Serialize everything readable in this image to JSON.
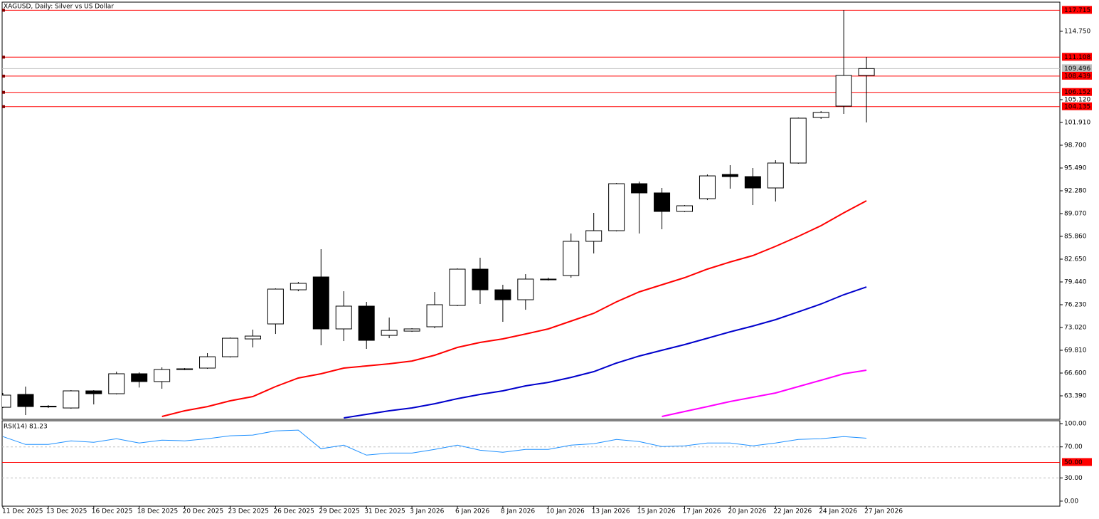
{
  "chart_data": [
    {
      "type": "candlestick",
      "title": "XAGUSD, Daily:  Silver vs US Dollar",
      "categories": [
        "11 Dec 2025",
        null,
        "13 Dec 2025",
        null,
        "16 Dec 2025",
        null,
        "18 Dec 2025",
        null,
        "20 Dec 2025",
        null,
        "23 Dec 2025",
        null,
        "26 Dec 2025",
        null,
        "29 Dec 2025",
        null,
        "31 Dec 2025",
        null,
        "3 Jan 2026",
        null,
        "6 Jan 2026",
        null,
        "8 Jan 2026",
        null,
        "10 Jan 2026",
        null,
        "13 Jan 2026",
        null,
        "15 Jan 2026",
        null,
        "17 Jan 2026",
        null,
        "20 Jan 2026",
        null,
        "22 Jan 2026",
        null,
        "24 Jan 2026",
        null,
        "27 Jan 2026"
      ],
      "open": [
        61.78,
        63.59,
        61.88,
        61.68,
        64.09,
        63.69,
        66.5,
        65.4,
        67.09,
        67.3,
        68.9,
        71.41,
        73.52,
        78.33,
        80.14,
        72.82,
        76.03,
        71.91,
        72.51,
        73.12,
        76.13,
        81.24,
        78.33,
        76.93,
        79.74,
        80.34,
        85.16,
        86.66,
        93.28,
        91.98,
        89.37,
        91.17,
        94.58,
        94.28,
        92.68,
        96.19,
        102.61,
        104.21,
        108.53
      ],
      "high": [
        63.79,
        64.69,
        62.08,
        64.19,
        64.19,
        66.8,
        66.7,
        67.4,
        67.3,
        69.41,
        71.61,
        72.72,
        78.53,
        79.44,
        84.05,
        78.13,
        76.63,
        74.42,
        72.92,
        78.03,
        81.34,
        82.85,
        79.04,
        80.54,
        80.04,
        86.26,
        89.17,
        93.38,
        93.58,
        92.68,
        90.27,
        94.58,
        95.89,
        95.49,
        96.59,
        102.61,
        103.51,
        117.76,
        111.14
      ],
      "low": [
        61.68,
        60.68,
        61.68,
        61.58,
        62.18,
        63.59,
        64.56,
        64.39,
        67.0,
        67.2,
        68.8,
        70.21,
        72.11,
        78.13,
        70.51,
        71.11,
        70.01,
        71.51,
        72.41,
        72.92,
        76.03,
        76.33,
        73.82,
        75.52,
        79.64,
        80.04,
        83.45,
        86.56,
        86.26,
        86.86,
        89.27,
        90.97,
        92.58,
        90.27,
        90.77,
        96.09,
        102.41,
        103.11,
        101.91
      ],
      "close": [
        63.49,
        61.88,
        61.93,
        64.09,
        63.69,
        66.5,
        65.4,
        67.1,
        67.2,
        68.9,
        71.51,
        71.81,
        78.43,
        79.24,
        72.82,
        76.03,
        71.21,
        72.61,
        72.82,
        76.23,
        81.24,
        78.33,
        76.93,
        79.84,
        79.84,
        85.16,
        86.66,
        93.28,
        91.98,
        89.37,
        90.17,
        94.38,
        94.28,
        92.68,
        96.19,
        102.51,
        103.31,
        108.53,
        109.496
      ],
      "series": [
        {
          "color": "#ff0000",
          "values": [
            null,
            null,
            null,
            null,
            null,
            null,
            null,
            60.48,
            61.28,
            61.88,
            62.69,
            63.29,
            64.69,
            65.9,
            66.5,
            67.3,
            67.6,
            67.9,
            68.3,
            69.11,
            70.21,
            70.91,
            71.41,
            72.11,
            72.82,
            73.92,
            75.02,
            76.63,
            78.03,
            79.04,
            80.04,
            81.24,
            82.25,
            83.15,
            84.45,
            85.86,
            87.36,
            89.17,
            90.87
          ]
        },
        {
          "color": "#0000cc",
          "values": [
            null,
            null,
            null,
            null,
            null,
            null,
            null,
            null,
            null,
            null,
            null,
            null,
            null,
            null,
            null,
            60.28,
            60.78,
            61.28,
            61.68,
            62.28,
            62.99,
            63.59,
            64.09,
            64.79,
            65.29,
            65.99,
            66.8,
            68.0,
            69.0,
            69.81,
            70.61,
            71.51,
            72.41,
            73.22,
            74.12,
            75.22,
            76.33,
            77.63,
            78.73
          ]
        },
        {
          "color": "#ff00ff",
          "values": [
            null,
            null,
            null,
            null,
            null,
            null,
            null,
            null,
            null,
            null,
            null,
            null,
            null,
            null,
            null,
            null,
            null,
            null,
            null,
            null,
            null,
            null,
            null,
            null,
            null,
            null,
            null,
            null,
            null,
            60.48,
            61.18,
            61.88,
            62.59,
            63.19,
            63.79,
            64.69,
            65.59,
            66.5,
            67.0
          ]
        }
      ],
      "hlines": [
        {
          "value": 117.715,
          "color": "#ff0000"
        },
        {
          "value": 111.108,
          "color": "#ff0000"
        },
        {
          "value": 109.496,
          "color": "#c0c0c0"
        },
        {
          "value": 108.439,
          "color": "#ff0000"
        },
        {
          "value": 106.152,
          "color": "#ff0000"
        },
        {
          "value": 104.135,
          "color": "#ff0000"
        }
      ],
      "ylim": [
        60.08,
        118.86
      ],
      "yticks": [
        {
          "value": 63.39,
          "label": "63.390"
        },
        {
          "value": 66.6,
          "label": "66.600"
        },
        {
          "value": 69.81,
          "label": "69.810"
        },
        {
          "value": 73.02,
          "label": "73.020"
        },
        {
          "value": 76.23,
          "label": "76.230"
        },
        {
          "value": 79.44,
          "label": "79.440"
        },
        {
          "value": 82.65,
          "label": "82.650"
        },
        {
          "value": 85.86,
          "label": "85.860"
        },
        {
          "value": 89.07,
          "label": "89.070"
        },
        {
          "value": 92.28,
          "label": "92.280"
        },
        {
          "value": 95.49,
          "label": "95.490"
        },
        {
          "value": 98.7,
          "label": "98.700"
        },
        {
          "value": 101.91,
          "label": "101.910"
        },
        {
          "value": 105.12,
          "label": "105.120"
        },
        {
          "value": 114.75,
          "label": "114.750"
        }
      ]
    },
    {
      "type": "line",
      "title": "RSI(14) 81.23",
      "values": [
        83.3,
        73.1,
        73.1,
        77.8,
        75.9,
        80.6,
        75.0,
        78.7,
        77.8,
        80.6,
        84.3,
        85.2,
        90.7,
        91.7,
        67.6,
        72.2,
        59.3,
        62.0,
        62.0,
        66.7,
        72.2,
        65.7,
        63.0,
        66.7,
        66.7,
        72.2,
        74.1,
        79.6,
        76.9,
        70.4,
        71.3,
        75.0,
        75.0,
        71.3,
        75.0,
        79.6,
        80.6,
        83.3,
        81.23
      ],
      "color": "#1e90ff",
      "hlines": [
        {
          "value": 70,
          "color": "#c0c0c0",
          "dashed": true
        },
        {
          "value": 50,
          "label": "50.00",
          "color": "#ff0000"
        },
        {
          "value": 30,
          "color": "#c0c0c0",
          "dashed": true
        }
      ],
      "ylim": [
        -6.5,
        103.7
      ],
      "yticks": [
        {
          "value": 100,
          "label": "100.00"
        },
        {
          "value": 70,
          "label": "70.00"
        },
        {
          "value": 30,
          "label": "30.00"
        },
        {
          "value": 0,
          "label": "0.00"
        }
      ]
    }
  ]
}
